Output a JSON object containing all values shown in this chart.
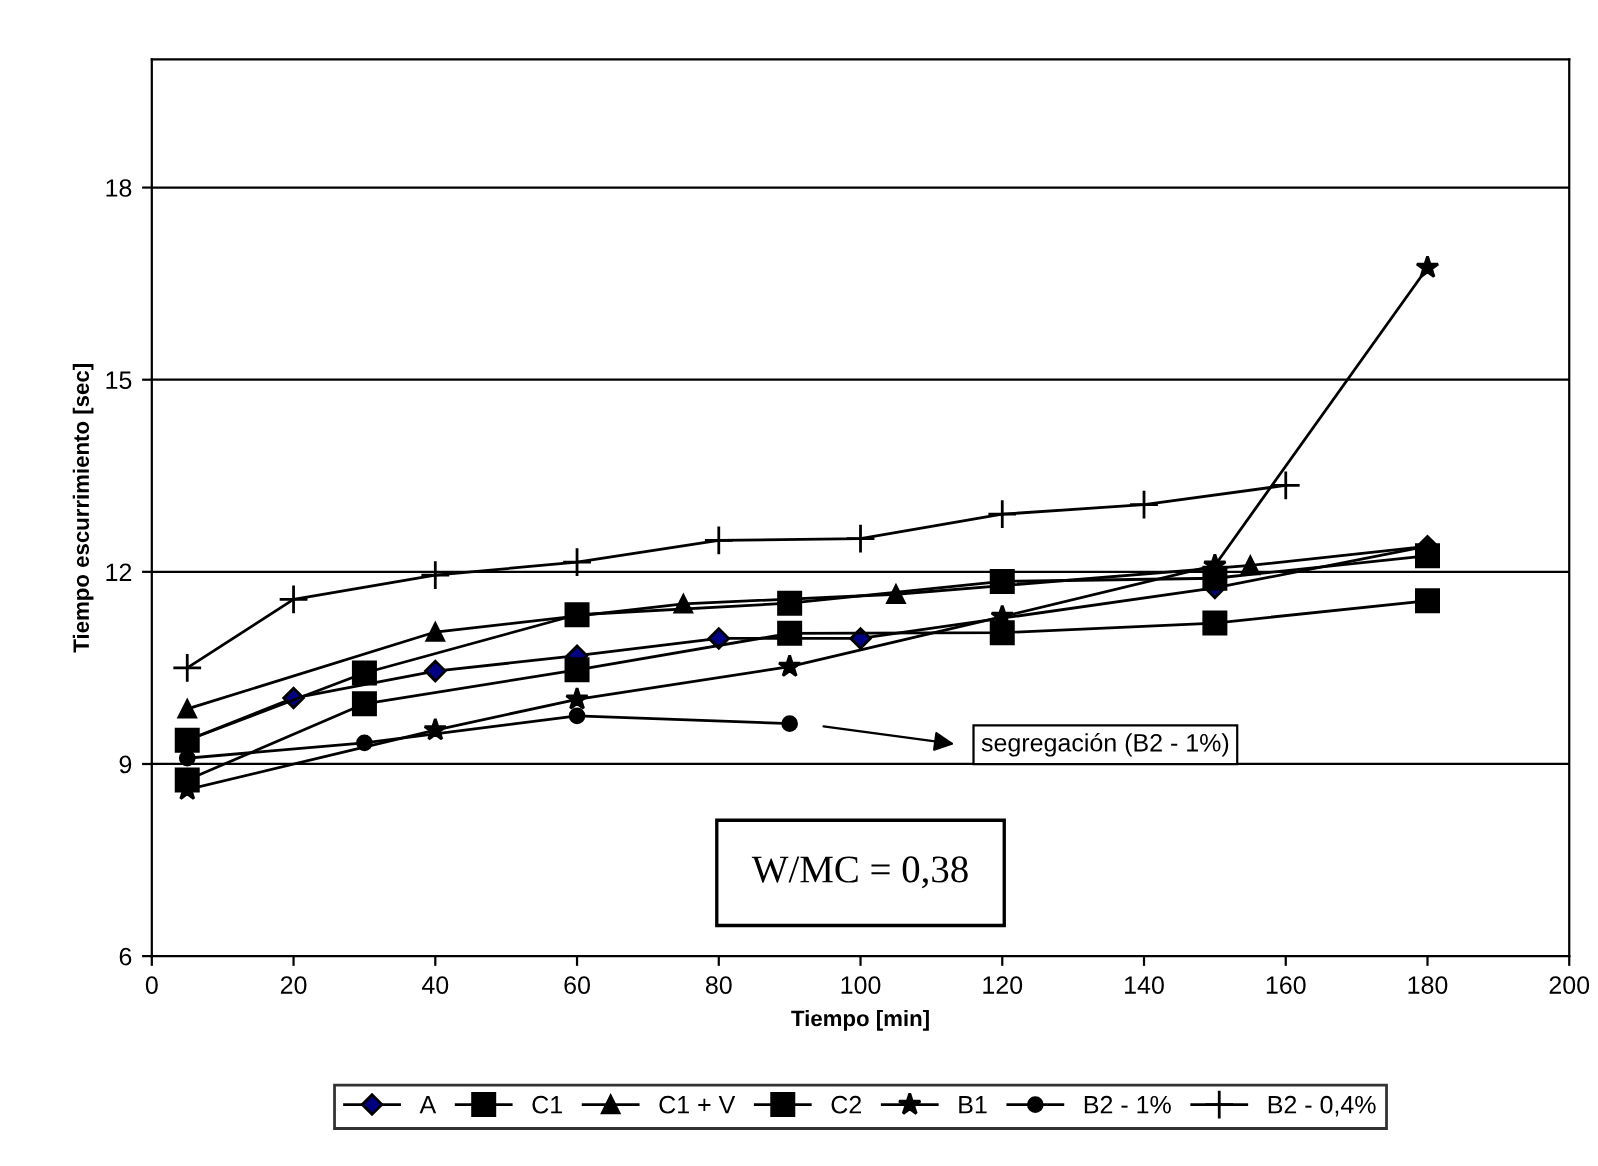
{
  "chart_data": {
    "type": "line",
    "xlabel": "Tiempo [min]",
    "ylabel": "Tiempo escurrimiento [sec]",
    "xlim": [
      0,
      200
    ],
    "xticks": [
      0,
      20,
      40,
      60,
      80,
      100,
      120,
      140,
      160,
      180,
      200
    ],
    "ylim": [
      6,
      20
    ],
    "yticks": [
      6,
      9,
      12,
      15,
      18
    ],
    "grid": "y",
    "legend": "bottom",
    "series": [
      {
        "name": "A",
        "color": "#000080",
        "marker": "diamond",
        "x": [
          5,
          20,
          40,
          60,
          80,
          100,
          150,
          180
        ],
        "values": [
          9.37,
          10.03,
          10.45,
          10.69,
          10.96,
          10.96,
          11.75,
          12.4
        ]
      },
      {
        "name": "C1",
        "color": "#000000",
        "marker": "square",
        "x": [
          5,
          30,
          60,
          90,
          120,
          150,
          180
        ],
        "values": [
          8.75,
          9.94,
          10.47,
          11.04,
          11.05,
          11.2,
          11.55
        ]
      },
      {
        "name": "C1 + V",
        "color": "#000000",
        "marker": "triangle",
        "x": [
          5,
          40,
          75,
          105,
          155,
          180
        ],
        "values": [
          9.86,
          11.06,
          11.5,
          11.65,
          12.1,
          12.4
        ]
      },
      {
        "name": "C2",
        "color": "#000000",
        "marker": "square",
        "x": [
          5,
          30,
          60,
          90,
          120,
          150,
          180
        ],
        "values": [
          9.37,
          10.42,
          11.33,
          11.51,
          11.85,
          11.9,
          12.25
        ]
      },
      {
        "name": "B1",
        "color": "#000000",
        "marker": "star",
        "x": [
          5,
          40,
          60,
          90,
          120,
          150,
          180
        ],
        "values": [
          8.6,
          9.53,
          10.01,
          10.52,
          11.3,
          12.1,
          16.75
        ]
      },
      {
        "name": "B2 - 1%",
        "color": "#000000",
        "marker": "circle",
        "x": [
          5,
          30,
          60,
          90
        ],
        "values": [
          9.09,
          9.33,
          9.75,
          9.63
        ]
      },
      {
        "name": "B2 - 0,4%",
        "color": "#000000",
        "marker": "cross",
        "x": [
          5,
          20,
          40,
          60,
          80,
          100,
          120,
          140,
          160
        ],
        "values": [
          10.5,
          11.57,
          11.95,
          12.15,
          12.49,
          12.52,
          12.9,
          13.05,
          13.35
        ]
      }
    ],
    "annotations": [
      "segregación (B2 - 1%)",
      "W/MC = 0,38"
    ]
  }
}
